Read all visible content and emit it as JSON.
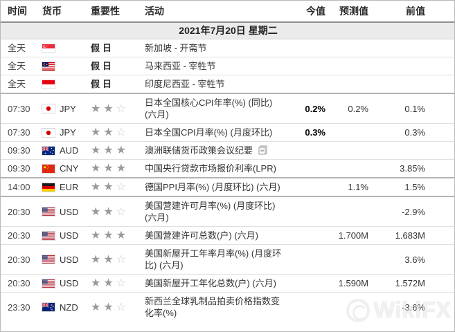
{
  "table": {
    "headers": {
      "time": "时间",
      "currency": "货币",
      "importance": "重要性",
      "activity": "活动",
      "actual": "今值",
      "forecast": "预测值",
      "previous": "前值"
    },
    "date_header": "2021年7月20日 星期二",
    "rows": [
      {
        "time": "全天",
        "flag": "singapore",
        "code": "",
        "stars": 0,
        "holiday_label": "假日",
        "activity": "新加坡 - 开斋节",
        "actual": "",
        "forecast": "",
        "previous": "",
        "group_start": false,
        "doc_icon": false
      },
      {
        "time": "全天",
        "flag": "malaysia",
        "code": "",
        "stars": 0,
        "holiday_label": "假日",
        "activity": "马来西亚 - 宰牲节",
        "actual": "",
        "forecast": "",
        "previous": "",
        "group_start": false,
        "doc_icon": false
      },
      {
        "time": "全天",
        "flag": "indonesia",
        "code": "",
        "stars": 0,
        "holiday_label": "假日",
        "activity": "印度尼西亚 - 宰牲节",
        "actual": "",
        "forecast": "",
        "previous": "",
        "group_start": false,
        "doc_icon": false
      },
      {
        "time": "07:30",
        "flag": "japan",
        "code": "JPY",
        "stars": 2,
        "holiday_label": "",
        "activity": "日本全国核心CPI年率(%) (同比) (六月)",
        "actual": "0.2%",
        "forecast": "0.2%",
        "previous": "0.1%",
        "group_start": true,
        "doc_icon": false
      },
      {
        "time": "07:30",
        "flag": "japan",
        "code": "JPY",
        "stars": 2,
        "holiday_label": "",
        "activity": "日本全国CPI月率(%) (月度环比)",
        "actual": "0.3%",
        "forecast": "",
        "previous": "0.3%",
        "group_start": false,
        "doc_icon": false
      },
      {
        "time": "09:30",
        "flag": "australia",
        "code": "AUD",
        "stars": 3,
        "holiday_label": "",
        "activity": "澳洲联储货币政策会议纪要",
        "actual": "",
        "forecast": "",
        "previous": "",
        "group_start": false,
        "doc_icon": true
      },
      {
        "time": "09:30",
        "flag": "china",
        "code": "CNY",
        "stars": 3,
        "holiday_label": "",
        "activity": "中国央行贷款市场报价利率(LPR)",
        "actual": "",
        "forecast": "",
        "previous": "3.85%",
        "group_start": false,
        "doc_icon": false
      },
      {
        "time": "14:00",
        "flag": "germany",
        "code": "EUR",
        "stars": 2,
        "holiday_label": "",
        "activity": "德国PPI月率(%) (月度环比) (六月)",
        "actual": "",
        "forecast": "1.1%",
        "previous": "1.5%",
        "group_start": true,
        "doc_icon": false
      },
      {
        "time": "20:30",
        "flag": "usa",
        "code": "USD",
        "stars": 2,
        "holiday_label": "",
        "activity": "美国营建许可月率(%) (月度环比) (六月)",
        "actual": "",
        "forecast": "",
        "previous": "-2.9%",
        "group_start": true,
        "doc_icon": false
      },
      {
        "time": "20:30",
        "flag": "usa",
        "code": "USD",
        "stars": 3,
        "holiday_label": "",
        "activity": "美国营建许可总数(户) (六月)",
        "actual": "",
        "forecast": "1.700M",
        "previous": "1.683M",
        "group_start": false,
        "doc_icon": false
      },
      {
        "time": "20:30",
        "flag": "usa",
        "code": "USD",
        "stars": 2,
        "holiday_label": "",
        "activity": "美国新屋开工年率月率(%) (月度环比) (六月)",
        "actual": "",
        "forecast": "",
        "previous": "3.6%",
        "group_start": false,
        "doc_icon": false
      },
      {
        "time": "20:30",
        "flag": "usa",
        "code": "USD",
        "stars": 2,
        "holiday_label": "",
        "activity": "美国新屋开工年化总数(户) (六月)",
        "actual": "",
        "forecast": "1.590M",
        "previous": "1.572M",
        "group_start": false,
        "doc_icon": false
      },
      {
        "time": "23:30",
        "flag": "new-zealand",
        "code": "NZD",
        "stars": 2,
        "holiday_label": "",
        "activity": "新西兰全球乳制品拍卖价格指数变化率(%)",
        "actual": "",
        "forecast": "",
        "previous": "-3.6%",
        "group_start": false,
        "doc_icon": false
      }
    ]
  },
  "watermark": {
    "text": "WikiFX"
  },
  "colors": {
    "actual_value": "#000000",
    "body_text": "#333333",
    "star_filled": "#9a9a9a",
    "star_empty": "#cbcbcb",
    "date_row_bg": "#ebebeb",
    "thick_separator": "#b3b3b3",
    "thin_separator": "#e0e0e0"
  }
}
